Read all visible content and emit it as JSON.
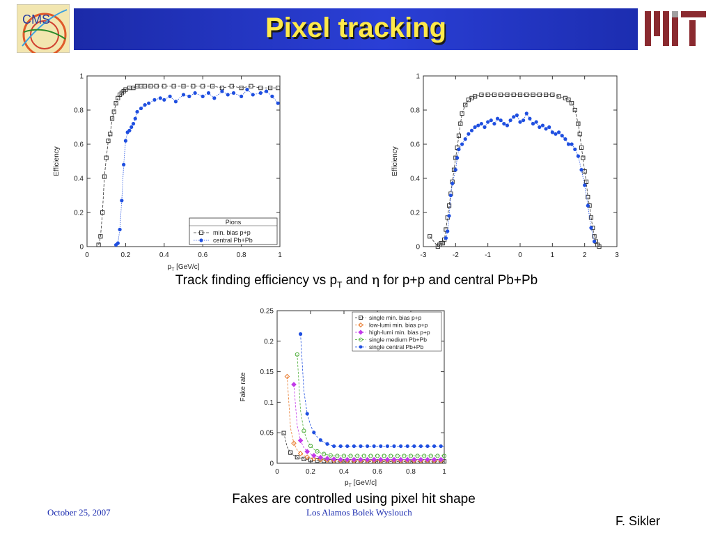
{
  "header": {
    "title": "Pixel tracking",
    "logo_left_text": "CMS"
  },
  "captions": {
    "efficiency_parts": [
      "Track finding efficiency vs p",
      "T",
      " and ",
      "η",
      " for p+p and central Pb+Pb"
    ],
    "fakes": "Fakes are controlled using pixel hit shape"
  },
  "footer": {
    "date": "October 25, 2007",
    "center": "Los Alamos Bolek Wyslouch",
    "author": "F. Sikler"
  },
  "chart_data": [
    {
      "type": "scatter",
      "xlabel": "pT [GeV/c]",
      "ylabel": "Efficiency",
      "xlim": [
        0,
        1
      ],
      "ylim": [
        0,
        1
      ],
      "xticks": [
        "0",
        "0.2",
        "0.4",
        "0.6",
        "0.8",
        "1"
      ],
      "yticks": [
        "0",
        "0.2",
        "0.4",
        "0.6",
        "0.8",
        "1"
      ],
      "legend": {
        "title": "Pions",
        "placement": "bottom-right"
      },
      "series": [
        {
          "name": "min. bias p+p",
          "color": "#333333",
          "marker": "open-square",
          "x": [
            0.06,
            0.07,
            0.08,
            0.09,
            0.1,
            0.11,
            0.12,
            0.13,
            0.14,
            0.15,
            0.16,
            0.17,
            0.18,
            0.19,
            0.2,
            0.22,
            0.24,
            0.26,
            0.28,
            0.3,
            0.33,
            0.36,
            0.4,
            0.45,
            0.5,
            0.55,
            0.6,
            0.65,
            0.7,
            0.75,
            0.8,
            0.85,
            0.9,
            0.95,
            0.99
          ],
          "y": [
            0.01,
            0.06,
            0.2,
            0.41,
            0.52,
            0.62,
            0.66,
            0.75,
            0.79,
            0.84,
            0.87,
            0.89,
            0.9,
            0.91,
            0.92,
            0.93,
            0.93,
            0.94,
            0.94,
            0.94,
            0.94,
            0.94,
            0.94,
            0.94,
            0.94,
            0.94,
            0.94,
            0.94,
            0.93,
            0.94,
            0.93,
            0.94,
            0.93,
            0.93,
            0.93
          ]
        },
        {
          "name": "central Pb+Pb",
          "color": "#1f4fe0",
          "marker": "filled-circle",
          "x": [
            0.15,
            0.16,
            0.17,
            0.18,
            0.19,
            0.2,
            0.21,
            0.22,
            0.23,
            0.24,
            0.25,
            0.26,
            0.28,
            0.3,
            0.32,
            0.35,
            0.38,
            0.4,
            0.43,
            0.46,
            0.5,
            0.53,
            0.56,
            0.6,
            0.63,
            0.66,
            0.7,
            0.73,
            0.76,
            0.8,
            0.83,
            0.86,
            0.9,
            0.93,
            0.96,
            0.99
          ],
          "y": [
            0.01,
            0.02,
            0.1,
            0.27,
            0.48,
            0.62,
            0.67,
            0.68,
            0.7,
            0.72,
            0.75,
            0.79,
            0.81,
            0.83,
            0.84,
            0.86,
            0.87,
            0.86,
            0.88,
            0.85,
            0.89,
            0.88,
            0.9,
            0.88,
            0.9,
            0.87,
            0.91,
            0.89,
            0.9,
            0.88,
            0.92,
            0.89,
            0.9,
            0.91,
            0.88,
            0.84
          ]
        }
      ]
    },
    {
      "type": "scatter",
      "xlabel": "",
      "ylabel": "Efficiency",
      "xlim": [
        -3,
        3
      ],
      "ylim": [
        0,
        1
      ],
      "xticks": [
        "-3",
        "-2",
        "-1",
        "0",
        "1",
        "2",
        "3"
      ],
      "yticks": [
        "0",
        "0.2",
        "0.4",
        "0.6",
        "0.8",
        "1"
      ],
      "series": [
        {
          "name": "min. bias p+p",
          "color": "#333333",
          "marker": "open-square",
          "x": [
            -2.8,
            -2.55,
            -2.5,
            -2.45,
            -2.4,
            -2.35,
            -2.3,
            -2.25,
            -2.2,
            -2.15,
            -2.1,
            -2.05,
            -2.0,
            -1.95,
            -1.9,
            -1.85,
            -1.8,
            -1.7,
            -1.6,
            -1.5,
            -1.4,
            -1.2,
            -1.0,
            -0.8,
            -0.6,
            -0.4,
            -0.2,
            0.0,
            0.2,
            0.4,
            0.6,
            0.8,
            1.0,
            1.2,
            1.4,
            1.5,
            1.6,
            1.7,
            1.8,
            1.85,
            1.9,
            1.95,
            2.0,
            2.05,
            2.1,
            2.15,
            2.2,
            2.25,
            2.3,
            2.35,
            2.4,
            2.45
          ],
          "y": [
            0.06,
            0.0,
            0.01,
            0.02,
            0.02,
            0.04,
            0.1,
            0.17,
            0.24,
            0.31,
            0.38,
            0.45,
            0.52,
            0.58,
            0.65,
            0.72,
            0.78,
            0.83,
            0.86,
            0.87,
            0.88,
            0.89,
            0.89,
            0.89,
            0.89,
            0.89,
            0.89,
            0.89,
            0.89,
            0.89,
            0.89,
            0.89,
            0.89,
            0.88,
            0.87,
            0.86,
            0.84,
            0.8,
            0.72,
            0.66,
            0.58,
            0.52,
            0.44,
            0.38,
            0.29,
            0.24,
            0.17,
            0.11,
            0.06,
            0.03,
            0.01,
            0.0
          ]
        },
        {
          "name": "central Pb+Pb",
          "color": "#1f4fe0",
          "marker": "filled-circle",
          "x": [
            -2.3,
            -2.25,
            -2.2,
            -2.15,
            -2.1,
            -2.0,
            -1.95,
            -1.9,
            -1.8,
            -1.7,
            -1.6,
            -1.5,
            -1.4,
            -1.3,
            -1.2,
            -1.1,
            -1.0,
            -0.9,
            -0.8,
            -0.7,
            -0.6,
            -0.5,
            -0.4,
            -0.3,
            -0.2,
            -0.1,
            0.0,
            0.1,
            0.2,
            0.3,
            0.4,
            0.5,
            0.6,
            0.7,
            0.8,
            0.9,
            1.0,
            1.1,
            1.2,
            1.3,
            1.4,
            1.5,
            1.6,
            1.7,
            1.8,
            1.9,
            2.0,
            2.1,
            2.2,
            2.3
          ],
          "y": [
            0.05,
            0.09,
            0.18,
            0.3,
            0.37,
            0.45,
            0.52,
            0.57,
            0.6,
            0.63,
            0.66,
            0.68,
            0.7,
            0.71,
            0.72,
            0.7,
            0.73,
            0.74,
            0.72,
            0.75,
            0.74,
            0.72,
            0.71,
            0.74,
            0.76,
            0.77,
            0.73,
            0.74,
            0.78,
            0.75,
            0.72,
            0.73,
            0.7,
            0.71,
            0.69,
            0.7,
            0.67,
            0.66,
            0.67,
            0.65,
            0.63,
            0.6,
            0.6,
            0.57,
            0.53,
            0.45,
            0.36,
            0.24,
            0.11,
            0.03
          ]
        }
      ]
    },
    {
      "type": "line",
      "xlabel": "pT [GeV/c]",
      "ylabel": "Fake rate",
      "xlim": [
        0,
        1
      ],
      "ylim": [
        0,
        0.25
      ],
      "xticks": [
        "0",
        "0.2",
        "0.4",
        "0.6",
        "0.8",
        "1"
      ],
      "yticks": [
        "0",
        "0.05",
        "0.1",
        "0.15",
        "0.2",
        "0.25"
      ],
      "legend": {
        "placement": "top-right"
      },
      "series": [
        {
          "name": "single min. bias p+p",
          "color": "#333333",
          "marker": "open-square",
          "k": 0.011,
          "x0": 0.0,
          "p": 1.6
        },
        {
          "name": "low-lumi min. bias p+p",
          "color": "#e8782a",
          "marker": "open-diamond",
          "k": 0.016,
          "x0": 0.03,
          "p": 1.8
        },
        {
          "name": "high-lumi min. bias p+p",
          "color": "#c23ae8",
          "marker": "filled-diamond",
          "k": 0.022,
          "x0": 0.06,
          "p": 1.9
        },
        {
          "name": "single medium Pb+Pb",
          "color": "#4fae3a",
          "marker": "open-circle",
          "k": 0.03,
          "x0": 0.08,
          "p": 1.9
        },
        {
          "name": "single central Pb+Pb",
          "color": "#1f4fe0",
          "marker": "filled-circle",
          "k": 0.045,
          "x0": 0.1,
          "p": 1.6
        }
      ],
      "floors": [
        0.003,
        0.004,
        0.006,
        0.012,
        0.028
      ]
    }
  ]
}
